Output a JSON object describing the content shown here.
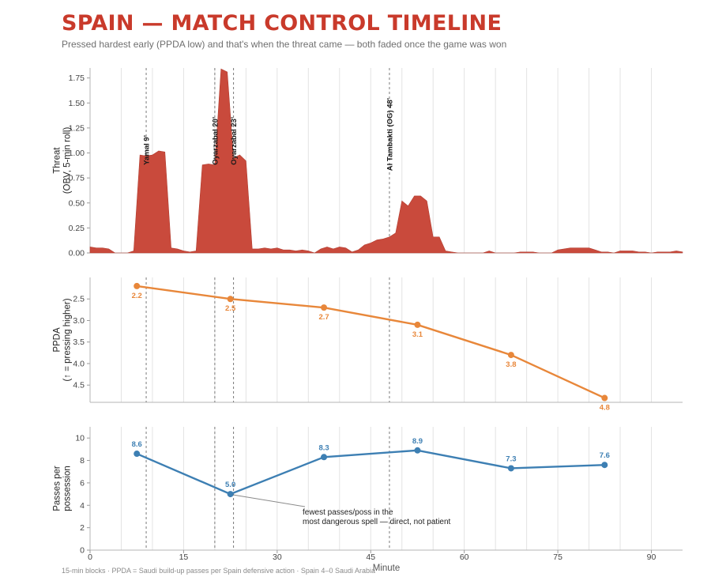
{
  "title": "SPAIN — MATCH CONTROL TIMELINE",
  "subtitle": "Pressed hardest early (PPDA low) and that's when the threat came — both faded once the game was won",
  "footer": "15-min blocks · PPDA = Saudi build-up passes per Spain defensive action · Spain 4–0 Saudi Arabia",
  "colors": {
    "threat": "#c94a3c",
    "ppda": "#e8873a",
    "passes": "#3d7fb3",
    "title": "#c93a2b"
  },
  "chart_data": [
    {
      "type": "area",
      "ylabel": "Threat\n(OBV, 5-min roll)",
      "ylim": [
        0,
        1.85
      ],
      "yticks": [
        0,
        0.25,
        0.5,
        0.75,
        1.0,
        1.25,
        1.5,
        1.75
      ],
      "ytick_labels": [
        "0.00",
        "0.25",
        "0.50",
        "0.75",
        "1.00",
        "1.25",
        "1.50",
        "1.75"
      ],
      "xlim": [
        0,
        95
      ],
      "grid": true,
      "x": [
        0,
        1,
        2,
        3,
        4,
        5,
        6,
        7,
        8,
        9,
        10,
        11,
        12,
        13,
        14,
        15,
        16,
        17,
        18,
        19,
        20,
        21,
        22,
        23,
        24,
        25,
        26,
        27,
        28,
        29,
        30,
        31,
        32,
        33,
        34,
        35,
        36,
        37,
        38,
        39,
        40,
        41,
        42,
        43,
        44,
        45,
        46,
        47,
        48,
        49,
        50,
        51,
        52,
        53,
        54,
        55,
        56,
        57,
        58,
        59,
        60,
        61,
        62,
        63,
        64,
        65,
        66,
        67,
        68,
        69,
        70,
        71,
        72,
        73,
        74,
        75,
        76,
        77,
        78,
        79,
        80,
        81,
        82,
        83,
        84,
        85,
        86,
        87,
        88,
        89,
        90,
        91,
        92,
        93,
        94,
        95
      ],
      "values": [
        0.06,
        0.05,
        0.05,
        0.04,
        0,
        0,
        0,
        0.02,
        0.98,
        0.97,
        0.98,
        1.02,
        1.01,
        0.05,
        0.04,
        0.02,
        0.01,
        0.02,
        0.88,
        0.89,
        0.88,
        1.84,
        1.81,
        0.95,
        0.98,
        0.92,
        0.04,
        0.04,
        0.05,
        0.04,
        0.05,
        0.03,
        0.03,
        0.02,
        0.03,
        0.02,
        0,
        0.04,
        0.06,
        0.04,
        0.06,
        0.05,
        0.01,
        0.03,
        0.08,
        0.1,
        0.13,
        0.14,
        0.16,
        0.2,
        0.52,
        0.47,
        0.57,
        0.57,
        0.52,
        0.16,
        0.16,
        0.02,
        0.01,
        0,
        0,
        0,
        0,
        0,
        0.02,
        0,
        0,
        0,
        0,
        0.01,
        0.01,
        0.01,
        0,
        0,
        0,
        0.03,
        0.04,
        0.05,
        0.05,
        0.05,
        0.05,
        0.03,
        0.01,
        0.01,
        0,
        0.02,
        0.02,
        0.02,
        0.01,
        0.01,
        0,
        0.01,
        0.01,
        0.01,
        0.02,
        0.01
      ]
    },
    {
      "type": "line",
      "ylabel": "PPDA\n(↑ = pressing higher)",
      "ylim": [
        4.9,
        2.0
      ],
      "yticks": [
        2.5,
        3.0,
        3.5,
        4.0,
        4.5
      ],
      "ytick_labels": [
        "2.5",
        "3.0",
        "3.5",
        "4.0",
        "4.5"
      ],
      "xlim": [
        0,
        95
      ],
      "grid": true,
      "x": [
        7.5,
        22.5,
        37.5,
        52.5,
        67.5,
        82.5
      ],
      "values": [
        2.2,
        2.5,
        2.7,
        3.1,
        3.8,
        4.8
      ],
      "data_labels": [
        "2.2",
        "2.5",
        "2.7",
        "3.1",
        "3.8",
        "4.8"
      ]
    },
    {
      "type": "line",
      "ylabel": "Passes per\npossession",
      "xlabel": "Minute",
      "ylim": [
        0,
        11
      ],
      "yticks": [
        0,
        2,
        4,
        6,
        8,
        10
      ],
      "ytick_labels": [
        "0",
        "2",
        "4",
        "6",
        "8",
        "10"
      ],
      "xlim": [
        0,
        95
      ],
      "xticks": [
        0,
        15,
        30,
        45,
        60,
        75,
        90
      ],
      "xtick_labels": [
        "0",
        "15",
        "30",
        "45",
        "60",
        "75",
        "90"
      ],
      "grid": true,
      "x": [
        7.5,
        22.5,
        37.5,
        52.5,
        67.5,
        82.5
      ],
      "values": [
        8.6,
        5.0,
        8.3,
        8.9,
        7.3,
        7.6
      ],
      "data_labels": [
        "8.6",
        "5.0",
        "8.3",
        "8.9",
        "7.3",
        "7.6"
      ],
      "annotation": {
        "x": 22.5,
        "y": 5.0,
        "text": [
          "fewest passes/poss in the",
          "most dangerous spell — direct, not patient"
        ]
      }
    }
  ],
  "goal_markers": [
    {
      "minute": 9,
      "label": "Yamal 9'"
    },
    {
      "minute": 20,
      "label": "Oyarzabal 20'"
    },
    {
      "minute": 23,
      "label": "Oyarzabal 23'"
    },
    {
      "minute": 48,
      "label": "Al Tambakti (OG) 48'"
    }
  ]
}
